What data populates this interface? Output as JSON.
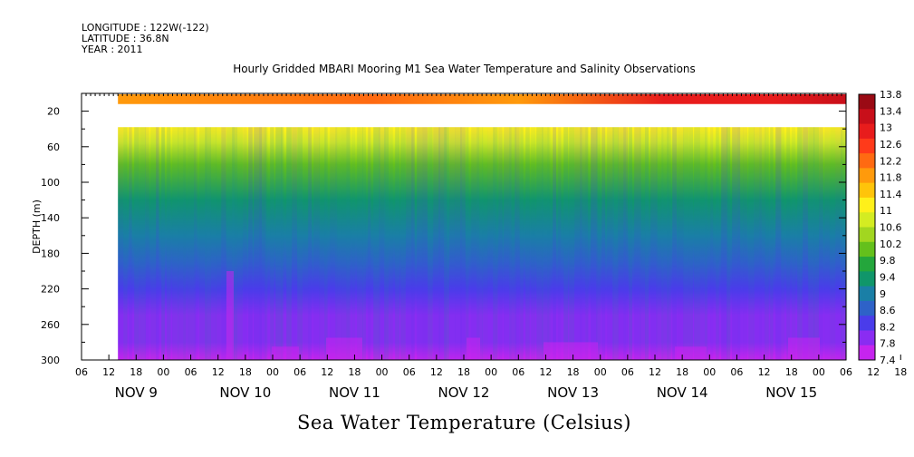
{
  "meta": {
    "longitude": "LONGITUDE : 122W(-122)",
    "latitude": "LATITUDE : 36.8N",
    "year": "YEAR : 2011"
  },
  "title": "Hourly Gridded MBARI Mooring M1 Sea Water Temperature and Salinity Observations",
  "bottom_title": "Sea Water Temperature (Celsius)",
  "chart_data": {
    "type": "heatmap",
    "title": "Hourly Gridded MBARI Mooring M1 Sea Water Temperature and Salinity Observations",
    "subtitle": "Sea Water Temperature (Celsius)",
    "ylabel": "DEPTH (m)",
    "xlabel": "",
    "y_reversed": true,
    "ylim": [
      300,
      0
    ],
    "y_ticks": [
      "20",
      "60",
      "100",
      "140",
      "180",
      "220",
      "260",
      "300"
    ],
    "y_tick_values": [
      20,
      60,
      100,
      140,
      180,
      220,
      260,
      300
    ],
    "x_hour_ticks": [
      "06",
      "12",
      "18",
      "00",
      "06",
      "12",
      "18",
      "00",
      "06",
      "12",
      "18",
      "00",
      "06",
      "12",
      "18",
      "00",
      "06",
      "12",
      "18",
      "00",
      "06",
      "12",
      "18",
      "00",
      "06",
      "12",
      "18",
      "00",
      "06",
      "12",
      "18",
      "00"
    ],
    "x_day_labels": [
      "NOV  9",
      "NOV 10",
      "NOV 11",
      "NOV 12",
      "NOV 13",
      "NOV 14",
      "NOV 15"
    ],
    "x_range_hours": [
      0,
      168
    ],
    "data_start_hours": 8,
    "data_gap_depth_range": [
      12,
      38
    ],
    "colorbar": {
      "labels": [
        "13.8",
        "13.4",
        "13",
        "12.6",
        "12.2",
        "11.8",
        "11.4",
        "11",
        "10.6",
        "10.2",
        "9.8",
        "9.4",
        "9",
        "8.6",
        "8.2",
        "7.8",
        "7.4"
      ],
      "colors": [
        "#9a0a14",
        "#c80f1a",
        "#e81c1c",
        "#ff3a1a",
        "#ff6a12",
        "#ff9a0c",
        "#ffc40a",
        "#fff01a",
        "#d4ec22",
        "#a2d620",
        "#64c01c",
        "#24a63c",
        "#10966a",
        "#1a7fa6",
        "#2e62c8",
        "#4a3cea",
        "#8a2cf2",
        "#c624ee"
      ]
    },
    "depth_profile": {
      "depths": [
        10,
        40,
        55,
        80,
        120,
        160,
        190,
        220,
        250,
        280,
        298
      ],
      "temperatures": [
        12.6,
        11.3,
        10.8,
        10.2,
        9.4,
        9.0,
        8.6,
        8.3,
        8.0,
        7.8,
        7.6
      ]
    }
  }
}
